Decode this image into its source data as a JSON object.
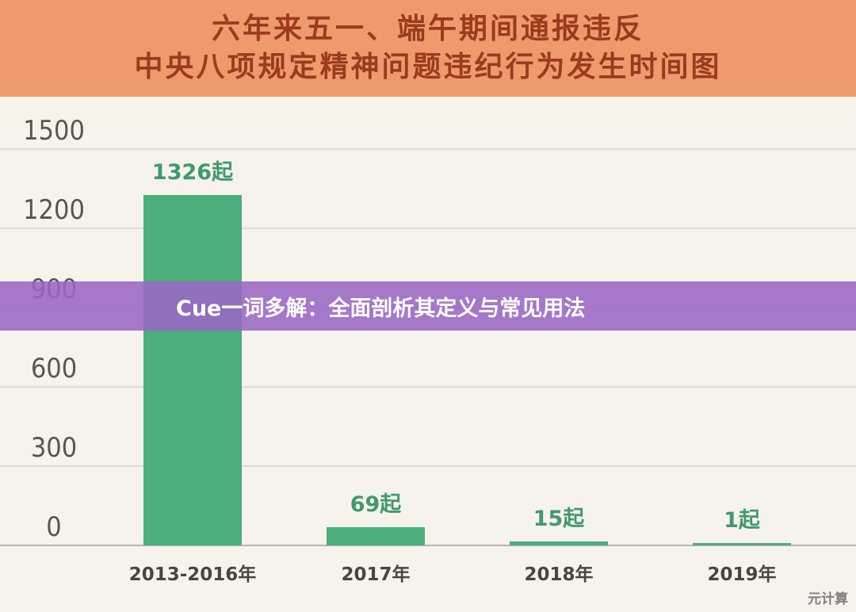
{
  "header": {
    "title_line1": "六年来五一、端午期间通报违反",
    "title_line2": "中央八项规定精神问题违纪行为发生时间图"
  },
  "banner": {
    "text": "Cue一词多解：全面剖析其定义与常见用法"
  },
  "watermark": {
    "text": "元计算"
  },
  "colors": {
    "bar": "#4caf7d",
    "label": "#3f9a6c",
    "header_bg": "#ef9a6c",
    "title": "#9a3b1e",
    "banner_bg": "#9a66c4"
  },
  "chart_data": {
    "type": "bar",
    "title": "六年来五一、端午期间通报违反中央八项规定精神问题违纪行为发生时间图",
    "categories": [
      "2013-2016年",
      "2017年",
      "2018年",
      "2019年"
    ],
    "values": [
      1326,
      69,
      15,
      1
    ],
    "data_labels": [
      "1326起",
      "69起",
      "15起",
      "1起"
    ],
    "yticks": [
      0,
      300,
      600,
      900,
      1200,
      1500
    ],
    "ylim": [
      0,
      1500
    ],
    "grid": true,
    "legend": "none"
  }
}
